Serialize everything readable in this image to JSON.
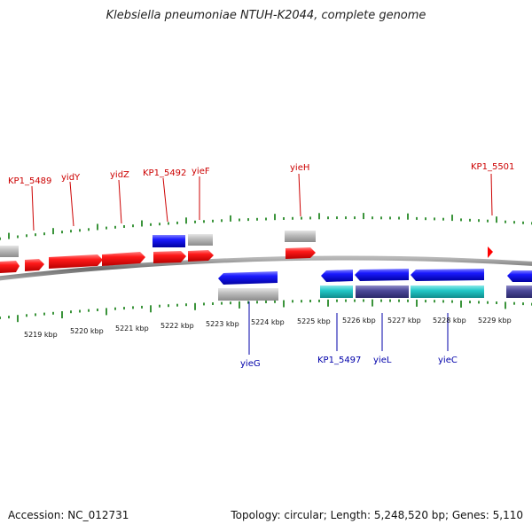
{
  "title": "Klebsiella pneumoniae NTUH-K2044, complete genome",
  "accession_text": "Accession: NC_012731",
  "summary_text": "Topology: circular; Length: 5,248,520 bp; Genes: 5,110",
  "colors": {
    "forward_gene": "#ff0000",
    "blue_gene": "#1010ff",
    "gray_gene": "#b4b4b4",
    "cyan_gene": "#19c8c8",
    "purple_gene": "#4b4896",
    "backbone": "#7a7a7a",
    "tick": "#0a7a0a",
    "top_label": "#cc0000",
    "bottom_label": "#0000aa"
  },
  "kbp_labels": [
    "5219 kbp",
    "5220 kbp",
    "5221 kbp",
    "5222 kbp",
    "5223 kbp",
    "5224 kbp",
    "5225 kbp",
    "5226 kbp",
    "5227 kbp",
    "5228 kbp",
    "5229 kbp"
  ],
  "top_gene_labels": [
    "KP1_5489",
    "yidY",
    "yidZ",
    "KP1_5492",
    "yieF",
    "yieH",
    "KP1_5501"
  ],
  "bottom_gene_labels": [
    "yieG",
    "KP1_5497",
    "yieL",
    "yieC"
  ]
}
